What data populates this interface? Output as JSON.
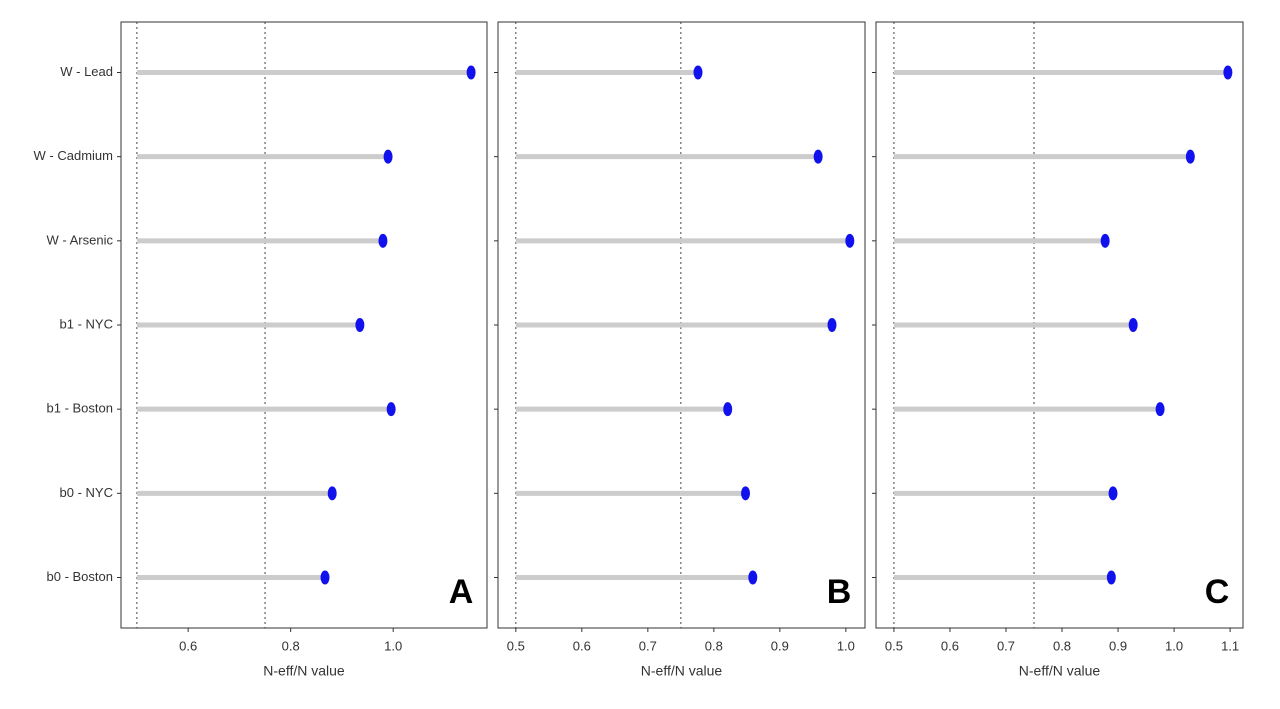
{
  "chart_data": [
    {
      "type": "lollipop",
      "label": "A",
      "x_label": "N-eff/N value",
      "categories": [
        "W - Lead",
        "W - Cadmium",
        "W - Arsenic",
        "b1 - NYC",
        "b1 - Boston",
        "b0 - NYC",
        "b0 - Boston"
      ],
      "values": [
        1.152,
        0.99,
        0.98,
        0.935,
        0.996,
        0.881,
        0.867
      ],
      "xlim": [
        0.469,
        1.183
      ],
      "xticks": [
        0.6,
        0.8,
        {
          "value": 1,
          "label": "1.0"
        }
      ],
      "baseline": 0.5,
      "reference_lines": [
        0.5,
        0.75
      ],
      "color": "#1111ee",
      "stem_color": "#cccccc"
    },
    {
      "type": "lollipop",
      "label": "B",
      "x_label": "N-eff/N value",
      "categories": [
        null,
        null,
        null,
        null,
        null,
        null,
        null
      ],
      "values": [
        0.776,
        0.958,
        1.006,
        0.979,
        0.821,
        0.848,
        0.859
      ],
      "xlim": [
        0.473,
        1.029
      ],
      "xticks": [
        0.5,
        0.6,
        0.7,
        0.8,
        0.9,
        {
          "value": 1,
          "label": "1.0"
        }
      ],
      "baseline": 0.5,
      "reference_lines": [
        0.5,
        0.75
      ],
      "color": "#1111ee",
      "stem_color": "#cccccc"
    },
    {
      "type": "lollipop",
      "label": "C",
      "x_label": "N-eff/N value",
      "categories": [
        null,
        null,
        null,
        null,
        null,
        null,
        null
      ],
      "values": [
        1.096,
        1.029,
        0.877,
        0.927,
        0.975,
        0.891,
        0.888
      ],
      "xlim": [
        0.468,
        1.123
      ],
      "xticks": [
        0.5,
        0.6,
        0.7,
        0.8,
        0.9,
        {
          "value": 1,
          "label": "1.0"
        },
        1.1
      ],
      "baseline": 0.5,
      "reference_lines": [
        0.5,
        0.75
      ],
      "color": "#1111ee",
      "stem_color": "#cccccc"
    }
  ]
}
